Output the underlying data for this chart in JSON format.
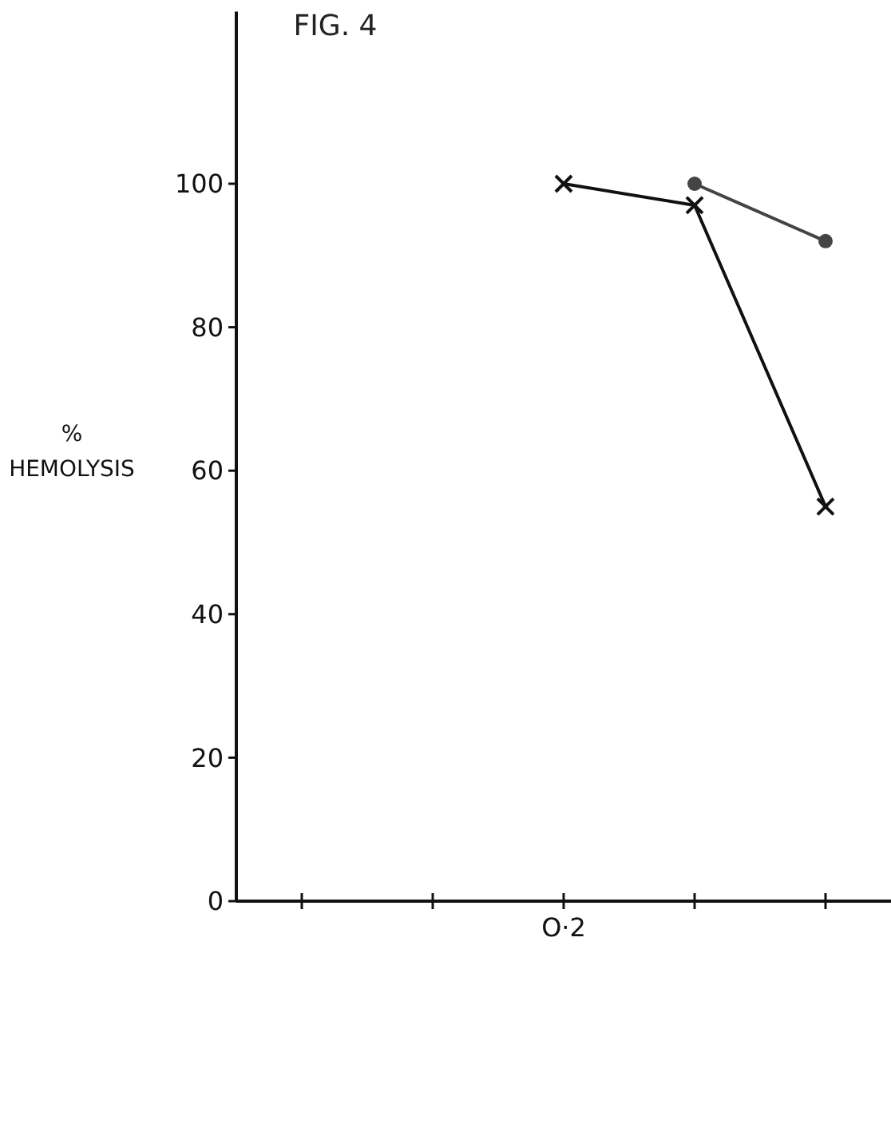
{
  "chart_data": {
    "type": "line",
    "title": "FIG. 4",
    "ylabel": "% HEMOLYSIS",
    "categories": [
      null,
      null,
      "O·2",
      null,
      null
    ],
    "series": [
      {
        "color": "#111111",
        "marker": "cross",
        "values": [
          null,
          null,
          100,
          97,
          55
        ]
      },
      {
        "color": "#444444",
        "marker": "circle",
        "values": [
          null,
          null,
          null,
          100,
          92
        ]
      }
    ],
    "ylim": [
      0,
      124
    ],
    "yticks": [
      0,
      20,
      40,
      60,
      80,
      100
    ],
    "grid": false
  }
}
